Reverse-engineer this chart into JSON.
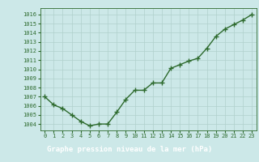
{
  "x": [
    0,
    1,
    2,
    3,
    4,
    5,
    6,
    7,
    8,
    9,
    10,
    11,
    12,
    13,
    14,
    15,
    16,
    17,
    18,
    19,
    20,
    21,
    22,
    23
  ],
  "y": [
    1007.0,
    1006.1,
    1005.7,
    1005.0,
    1004.3,
    1003.8,
    1004.0,
    1004.0,
    1005.3,
    1006.7,
    1007.7,
    1007.7,
    1008.5,
    1008.5,
    1010.1,
    1010.5,
    1010.9,
    1011.2,
    1012.3,
    1013.6,
    1014.4,
    1014.9,
    1015.4,
    1016.0
  ],
  "line_color": "#2d6a2d",
  "marker_color": "#2d6a2d",
  "bg_color": "#cce8e8",
  "grid_color": "#b0d0cc",
  "axes_color": "#2d6a2d",
  "title": "Graphe pression niveau de la mer (hPa)",
  "title_bg": "#2d6a2d",
  "title_text_color": "#ffffff",
  "xlim": [
    -0.5,
    23.5
  ],
  "ylim": [
    1003.3,
    1016.7
  ],
  "yticks": [
    1004,
    1005,
    1006,
    1007,
    1008,
    1009,
    1010,
    1011,
    1012,
    1013,
    1014,
    1015,
    1016
  ],
  "xticks": [
    0,
    1,
    2,
    3,
    4,
    5,
    6,
    7,
    8,
    9,
    10,
    11,
    12,
    13,
    14,
    15,
    16,
    17,
    18,
    19,
    20,
    21,
    22,
    23
  ],
  "tick_fontsize": 5.0,
  "title_fontsize": 6.5,
  "line_width": 1.0,
  "marker_size": 4.0
}
